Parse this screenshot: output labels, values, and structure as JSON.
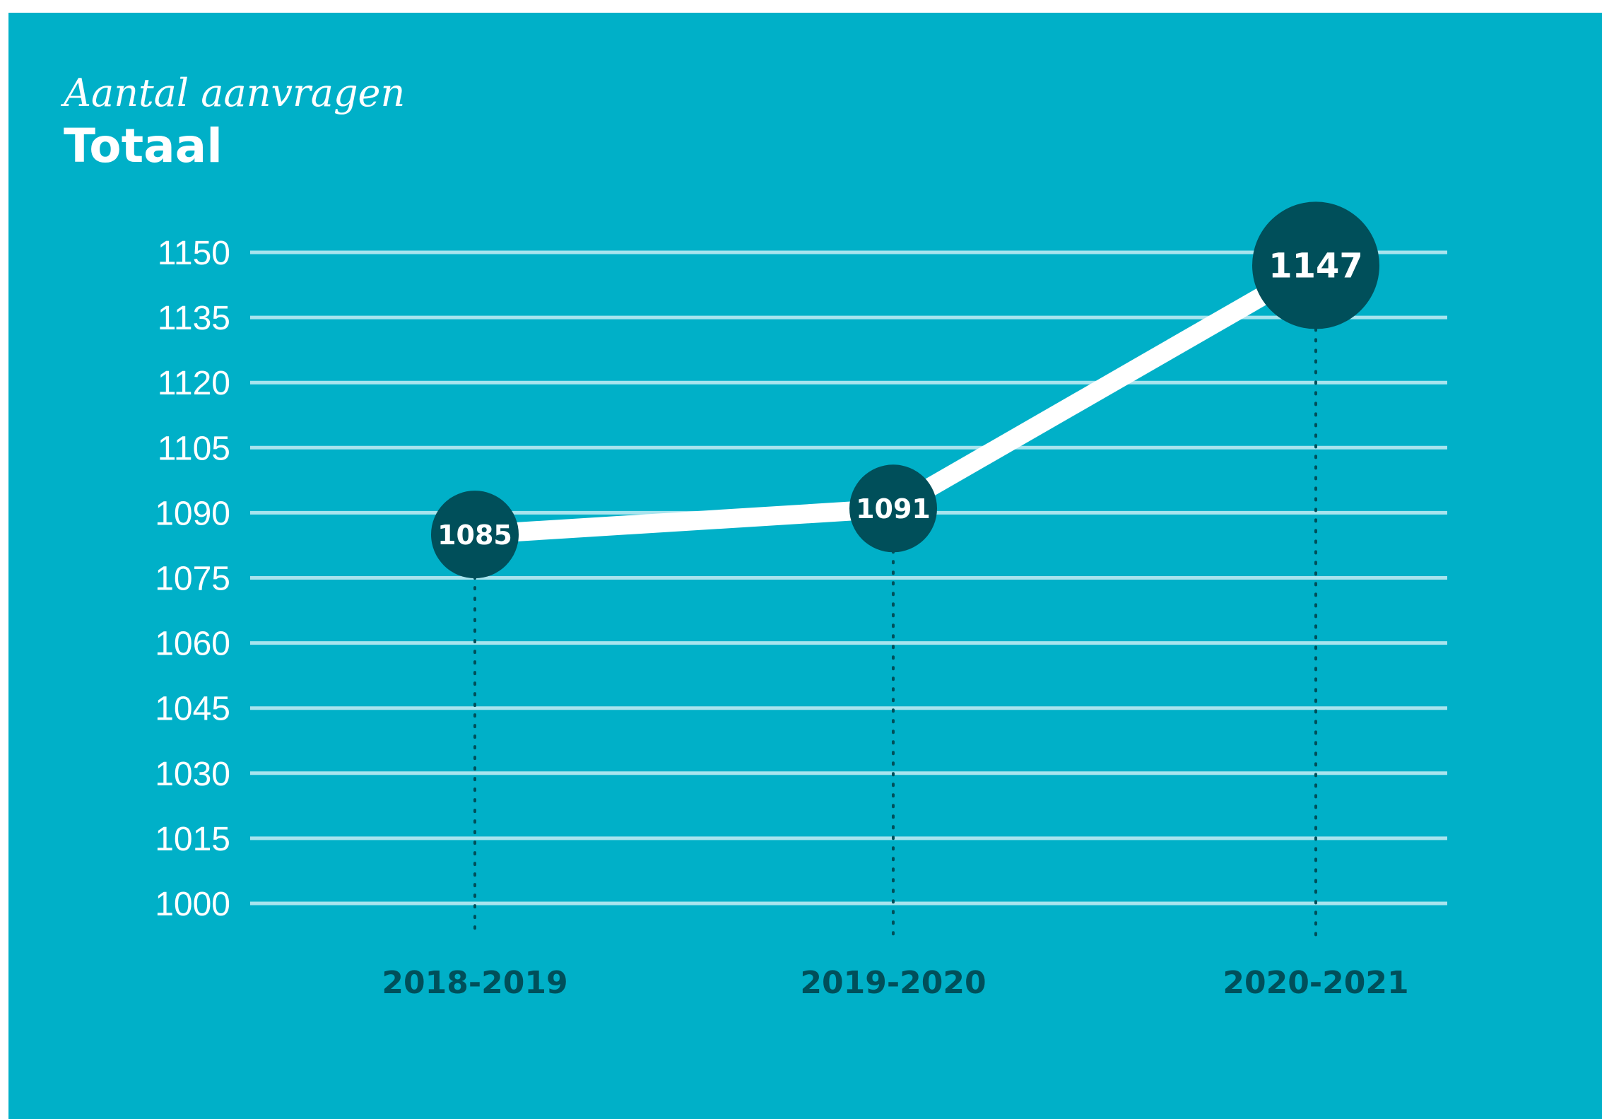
{
  "colors": {
    "background": "#00b0c8",
    "grid": "#a8e4ee",
    "line": "#ffffff",
    "marker": "#004f5a",
    "guide": "#004f5a",
    "category_text": "#004f5a"
  },
  "chart_data": {
    "type": "line",
    "subtitle": "Aantal aanvragen",
    "title": "Totaal",
    "categories": [
      "2018-2019",
      "2019-2020",
      "2020-2021"
    ],
    "series": [
      {
        "values": [
          1085,
          1091,
          1147
        ]
      }
    ],
    "yticks": [
      "1000",
      "1015",
      "1030",
      "1045",
      "1060",
      "1075",
      "1090",
      "1105",
      "1120",
      "1135",
      "1150"
    ],
    "ylim": [
      1000,
      1150
    ],
    "grid": true,
    "legend": "none"
  }
}
